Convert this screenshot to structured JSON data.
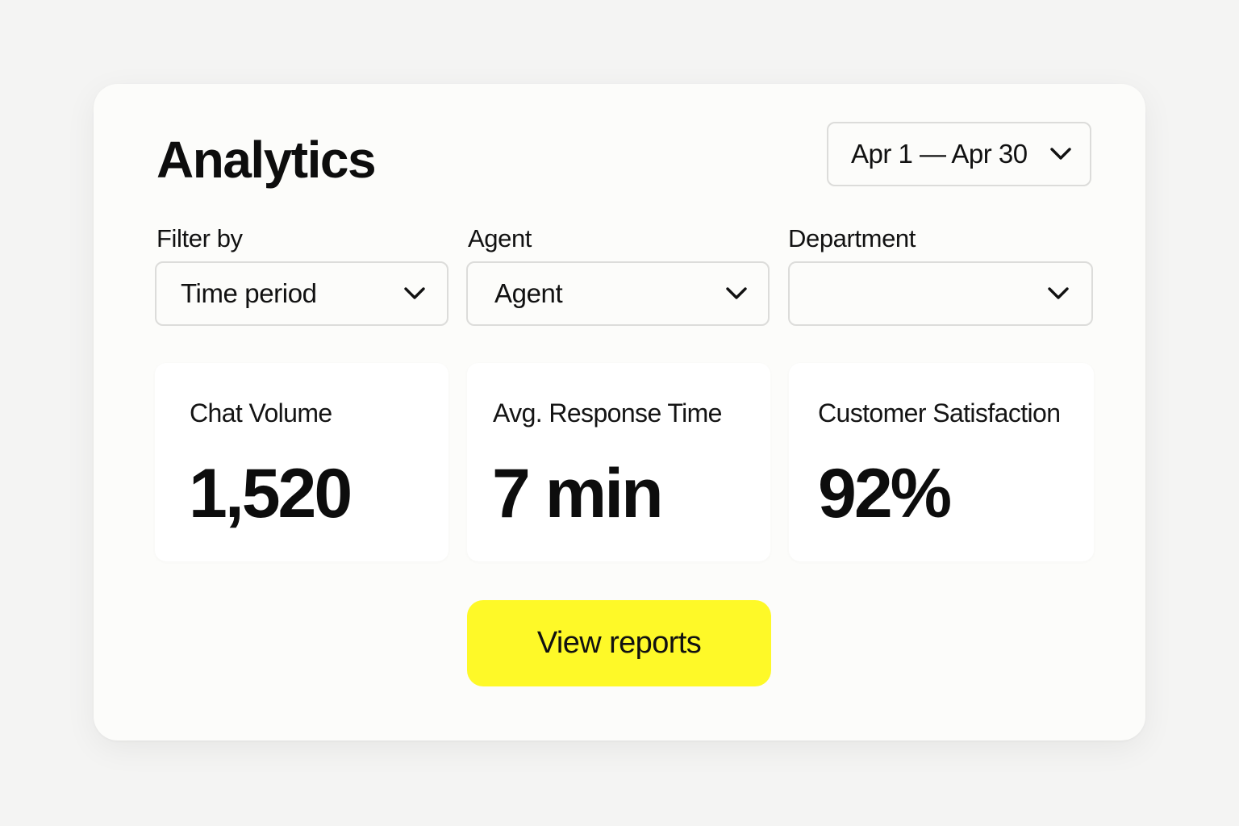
{
  "header": {
    "title": "Analytics",
    "date_range": {
      "value": "Apr 1 — Apr 30",
      "icon": "chevron-down-icon"
    }
  },
  "filters": [
    {
      "label": "Filter by",
      "value": "Time period",
      "icon": "chevron-down-icon"
    },
    {
      "label": "Agent",
      "value": "Agent",
      "icon": "chevron-down-icon"
    },
    {
      "label": "Department",
      "value": "",
      "icon": "chevron-down-icon"
    }
  ],
  "metrics": [
    {
      "label": "Chat Volume",
      "value": "1,520"
    },
    {
      "label": "Avg. Response Time",
      "value": "7 min"
    },
    {
      "label": "Customer Satisfaction",
      "value": "92%"
    }
  ],
  "actions": {
    "view_reports_label": "View reports"
  },
  "colors": {
    "accent": "#fef928",
    "background": "#f4f4f3",
    "card": "#fcfcfa",
    "border": "#dcdcda",
    "text": "#111111"
  }
}
